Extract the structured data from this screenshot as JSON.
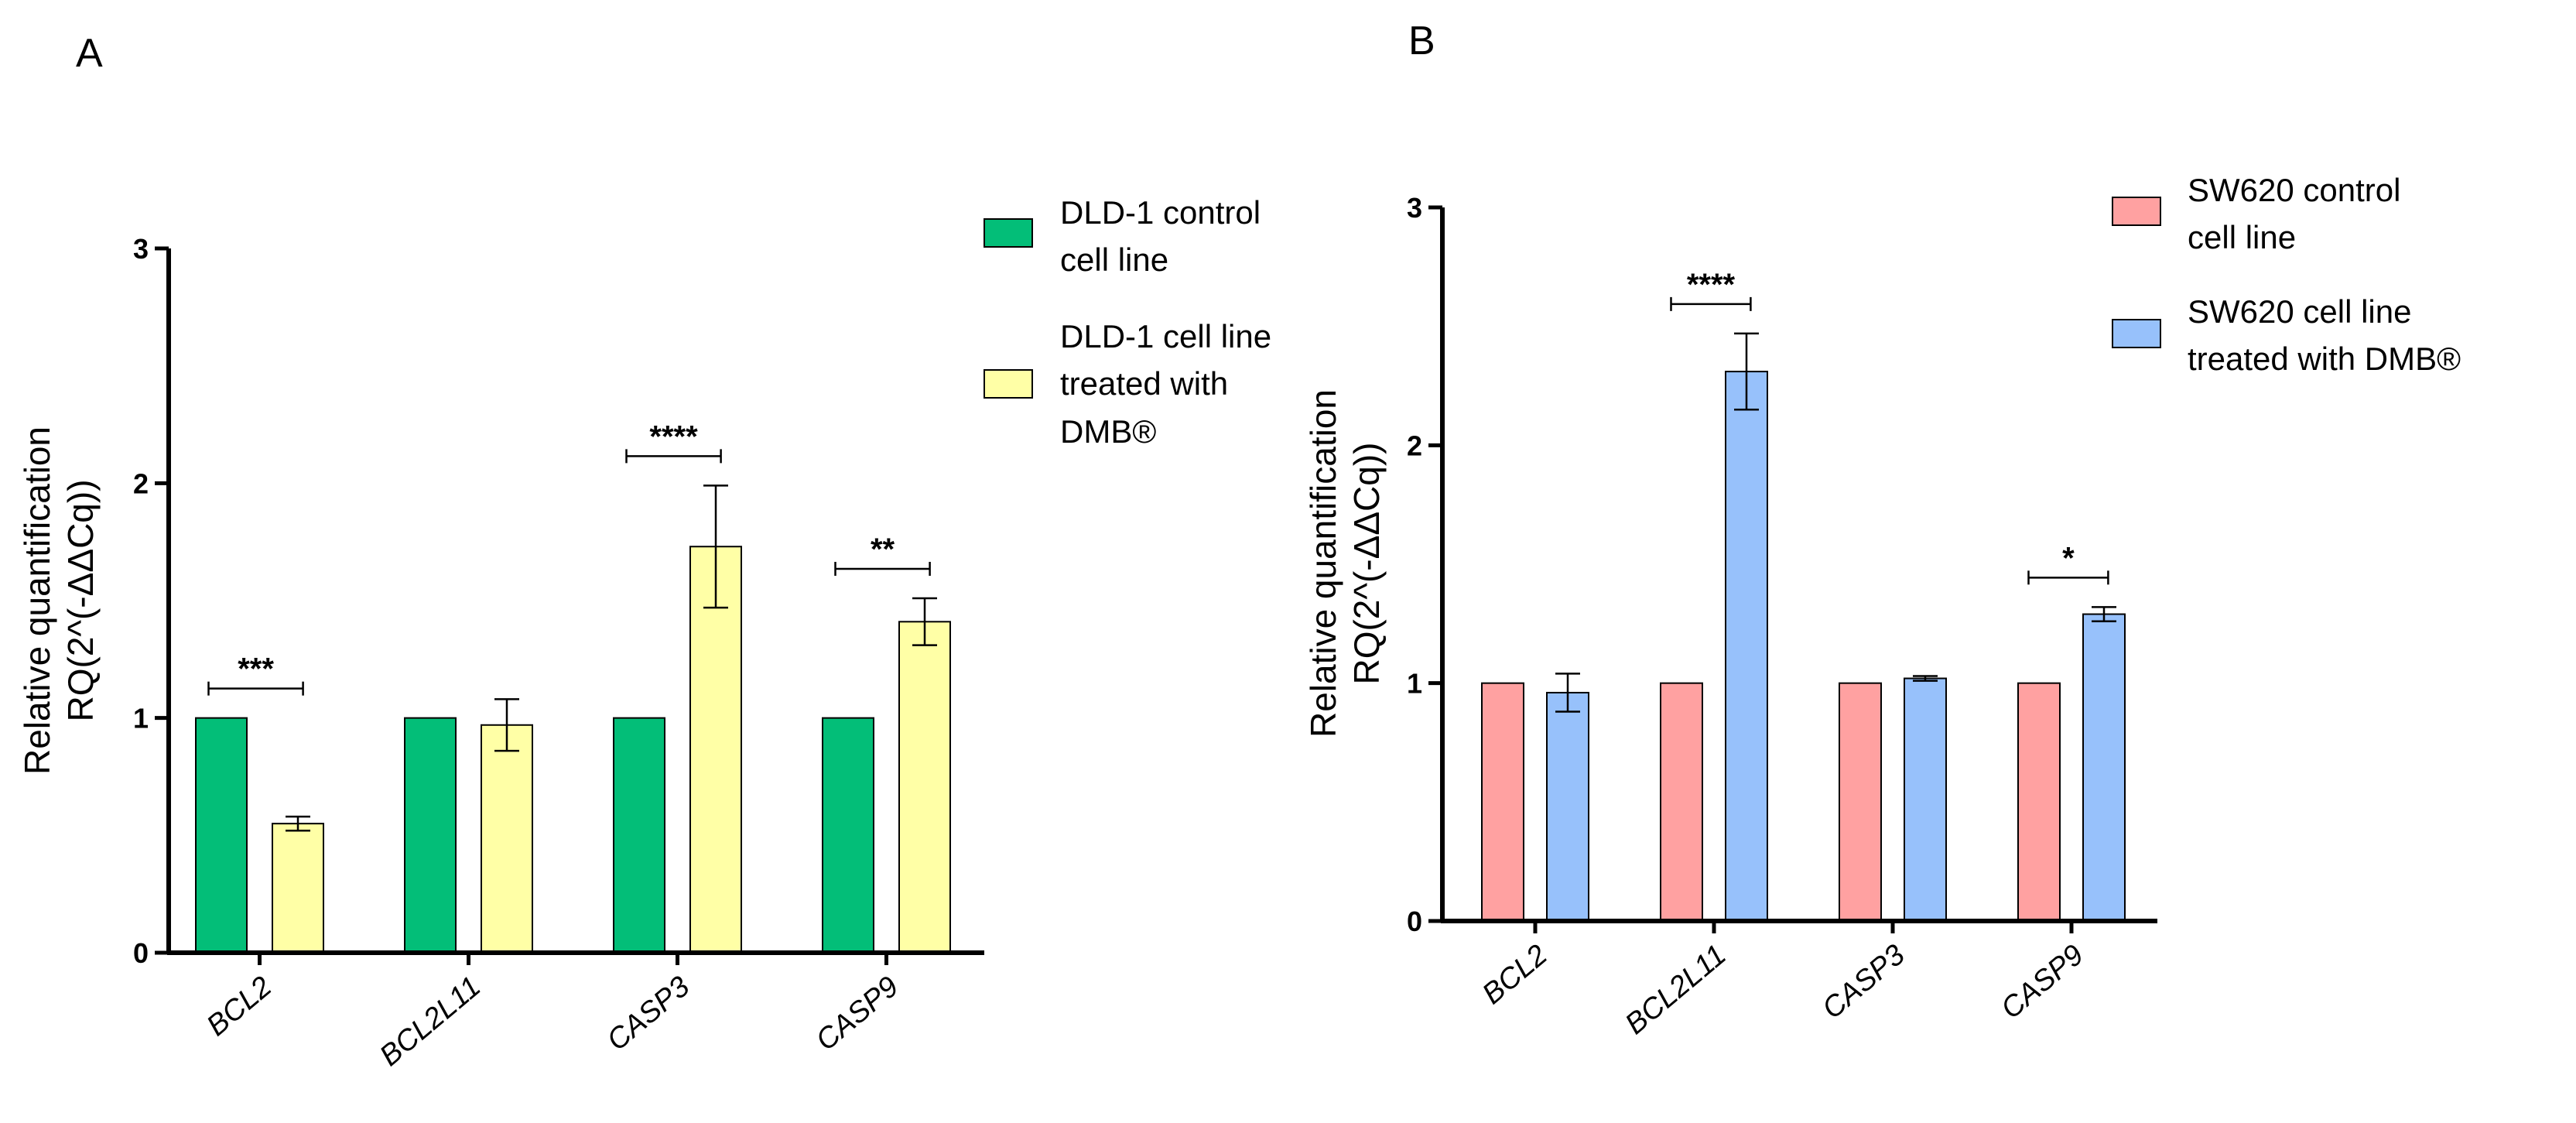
{
  "panels": [
    {
      "letter": "A",
      "ylabel_line1": "Relative quantification",
      "ylabel_line2": "RQ(2^(-ΔΔCq))",
      "chart_data": {
        "type": "bar",
        "categories": [
          "BCL2",
          "BCL2L11",
          "CASP3",
          "CASP9"
        ],
        "ylim": [
          0,
          3
        ],
        "yticks": [
          0,
          1,
          2,
          3
        ],
        "series": [
          {
            "name": "DLD-1 control cell line",
            "color": "#03BE78",
            "values": [
              1.0,
              1.0,
              1.0,
              1.0
            ],
            "errors": [
              0,
              0,
              0,
              0
            ]
          },
          {
            "name": "DLD-1 cell line treated with DMB®",
            "color": "#FFFFA6",
            "values": [
              0.55,
              0.97,
              1.73,
              1.41
            ],
            "errors": [
              0.03,
              0.11,
              0.26,
              0.1
            ]
          }
        ],
        "significance": [
          "***",
          "",
          "****",
          "**"
        ],
        "legend": [
          {
            "lines": [
              "DLD-1 control",
              "cell line"
            ],
            "color": "#03BE78"
          },
          {
            "lines": [
              "DLD-1 cell line",
              "treated with",
              "DMB®"
            ],
            "color": "#FFFFA6"
          }
        ]
      }
    },
    {
      "letter": "B",
      "ylabel_line1": "Relative quantification",
      "ylabel_line2": "RQ(2^(-ΔΔCq))",
      "chart_data": {
        "type": "bar",
        "categories": [
          "BCL2",
          "BCL2L11",
          "CASP3",
          "CASP9"
        ],
        "ylim": [
          0,
          3
        ],
        "yticks": [
          0,
          1,
          2,
          3
        ],
        "series": [
          {
            "name": "SW620 control cell line",
            "color": "#FFA1A1",
            "values": [
              1.0,
              1.0,
              1.0,
              1.0
            ],
            "errors": [
              0,
              0,
              0,
              0
            ]
          },
          {
            "name": "SW620 cell line treated with DMB®",
            "color": "#97C1FB",
            "values": [
              0.96,
              2.31,
              1.02,
              1.29
            ],
            "errors": [
              0.08,
              0.16,
              0.01,
              0.03
            ]
          }
        ],
        "significance": [
          "",
          "****",
          "",
          "*"
        ],
        "legend": [
          {
            "lines": [
              "SW620 control",
              "cell line"
            ],
            "color": "#FFA1A1"
          },
          {
            "lines": [
              "SW620 cell line",
              "treated with DMB®"
            ],
            "color": "#97C1FB"
          }
        ]
      }
    }
  ]
}
